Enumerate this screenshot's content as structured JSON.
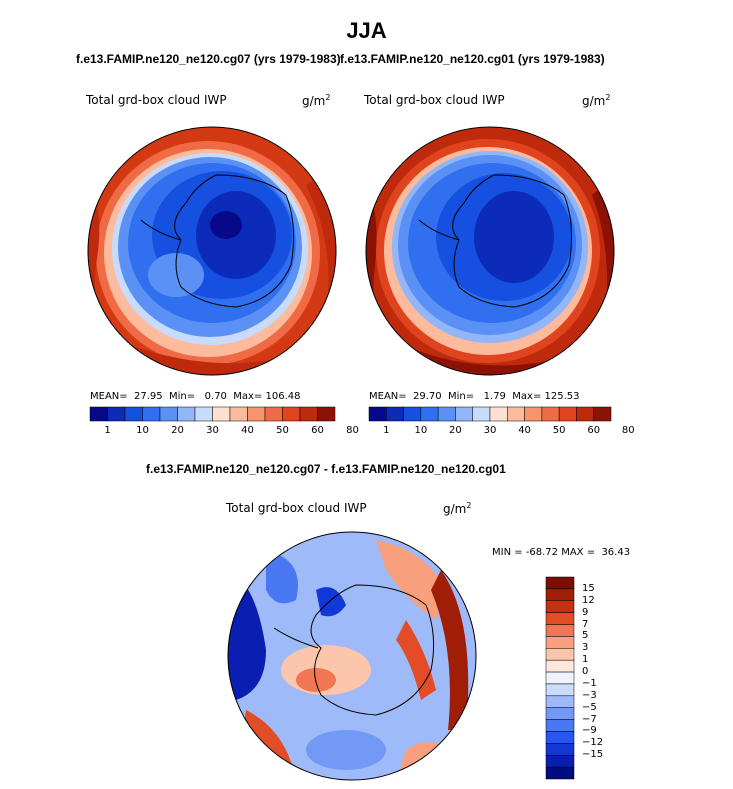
{
  "title": "JJA",
  "panels": [
    {
      "subtitle": "f.e13.FAMIP.ne120_ne120.cg07 (yrs 1979-1983)",
      "field_label": "Total grd-box cloud IWP",
      "units_base": "g/m",
      "units_exp": "2",
      "stats_text": "MEAN=  27.95  Min=   0.70  Max= 106.48",
      "colorbar_labels": [
        "1",
        "10",
        "20",
        "30",
        "40",
        "50",
        "60",
        "80"
      ]
    },
    {
      "subtitle": "f.e13.FAMIP.ne120_ne120.cg01 (yrs 1979-1983)",
      "field_label": "Total grd-box cloud IWP",
      "units_base": "g/m",
      "units_exp": "2",
      "stats_text": "MEAN=  29.70  Min=   1.79  Max= 125.53",
      "colorbar_labels": [
        "1",
        "10",
        "20",
        "30",
        "40",
        "50",
        "60",
        "80"
      ]
    }
  ],
  "diff_panel": {
    "subtitle": "f.e13.FAMIP.ne120_ne120.cg07 - f.e13.FAMIP.ne120_ne120.cg01",
    "field_label": "Total grd-box cloud IWP",
    "units_base": "g/m",
    "units_exp": "2",
    "minmax_text": "MIN = -68.72 MAX =  36.43",
    "colorbar_labels": [
      "15",
      "12",
      "9",
      "7",
      "5",
      "3",
      "1",
      "0",
      "−1",
      "−3",
      "−5",
      "−7",
      "−9",
      "−12",
      "−15"
    ]
  },
  "colors": {
    "abs_scale": [
      "#08088a",
      "#0c2bb8",
      "#1550e0",
      "#2f6ff0",
      "#5b90f5",
      "#93b6f8",
      "#c8dbfb",
      "#fde0d0",
      "#fbbb9c",
      "#f7946e",
      "#f06a45",
      "#e0441f",
      "#c02a0c",
      "#8c1205"
    ],
    "diff_scale": [
      "#000c80",
      "#0a1fb0",
      "#1238d8",
      "#2956ee",
      "#4a78f3",
      "#7399f6",
      "#9fbaf8",
      "#cadbfb",
      "#eef3fe",
      "#fde6da",
      "#fbc6ab",
      "#f8a07e",
      "#f27653",
      "#e24d27",
      "#c5300f",
      "#a01d07",
      "#7d0d02"
    ]
  }
}
